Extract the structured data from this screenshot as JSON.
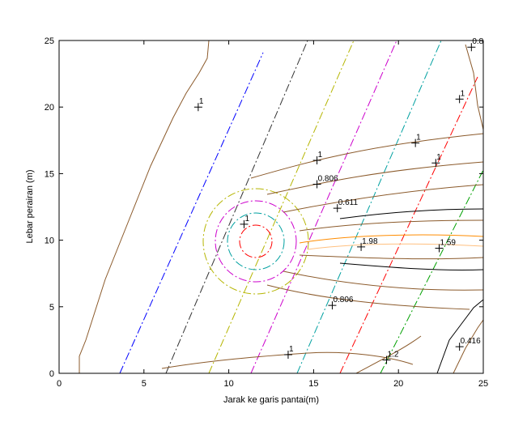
{
  "chart_data": {
    "type": "contour",
    "xlabel": "Jarak ke garis pantai(m)",
    "ylabel": "Lebar perairan (m)",
    "xlim": [
      0,
      25
    ],
    "ylim": [
      0,
      25
    ],
    "xticks": [
      0,
      5,
      10,
      15,
      20,
      25
    ],
    "yticks": [
      0,
      5,
      10,
      15,
      20,
      25
    ],
    "annotations": [
      {
        "text": "1",
        "x": 8.2,
        "y": 20
      },
      {
        "text": "1",
        "x": 15.2,
        "y": 16
      },
      {
        "text": "0.806",
        "x": 15.2,
        "y": 14.2
      },
      {
        "text": "0.611",
        "x": 16.4,
        "y": 12.4
      },
      {
        "text": "1",
        "x": 10.9,
        "y": 11.2
      },
      {
        "text": "1.98",
        "x": 17.8,
        "y": 9.5
      },
      {
        "text": "1.59",
        "x": 22.4,
        "y": 9.4
      },
      {
        "text": "0.806",
        "x": 16.1,
        "y": 5.1
      },
      {
        "text": "1",
        "x": 13.5,
        "y": 1.4
      },
      {
        "text": "1.2",
        "x": 19.3,
        "y": 1
      },
      {
        "text": "0.416",
        "x": 23.6,
        "y": 2
      },
      {
        "text": "1",
        "x": 21,
        "y": 17.3
      },
      {
        "text": "1",
        "x": 22.2,
        "y": 15.8
      },
      {
        "text": "1",
        "x": 23.6,
        "y": 20.6
      },
      {
        "text": "0.8",
        "x": 24.3,
        "y": 24.5
      }
    ]
  }
}
